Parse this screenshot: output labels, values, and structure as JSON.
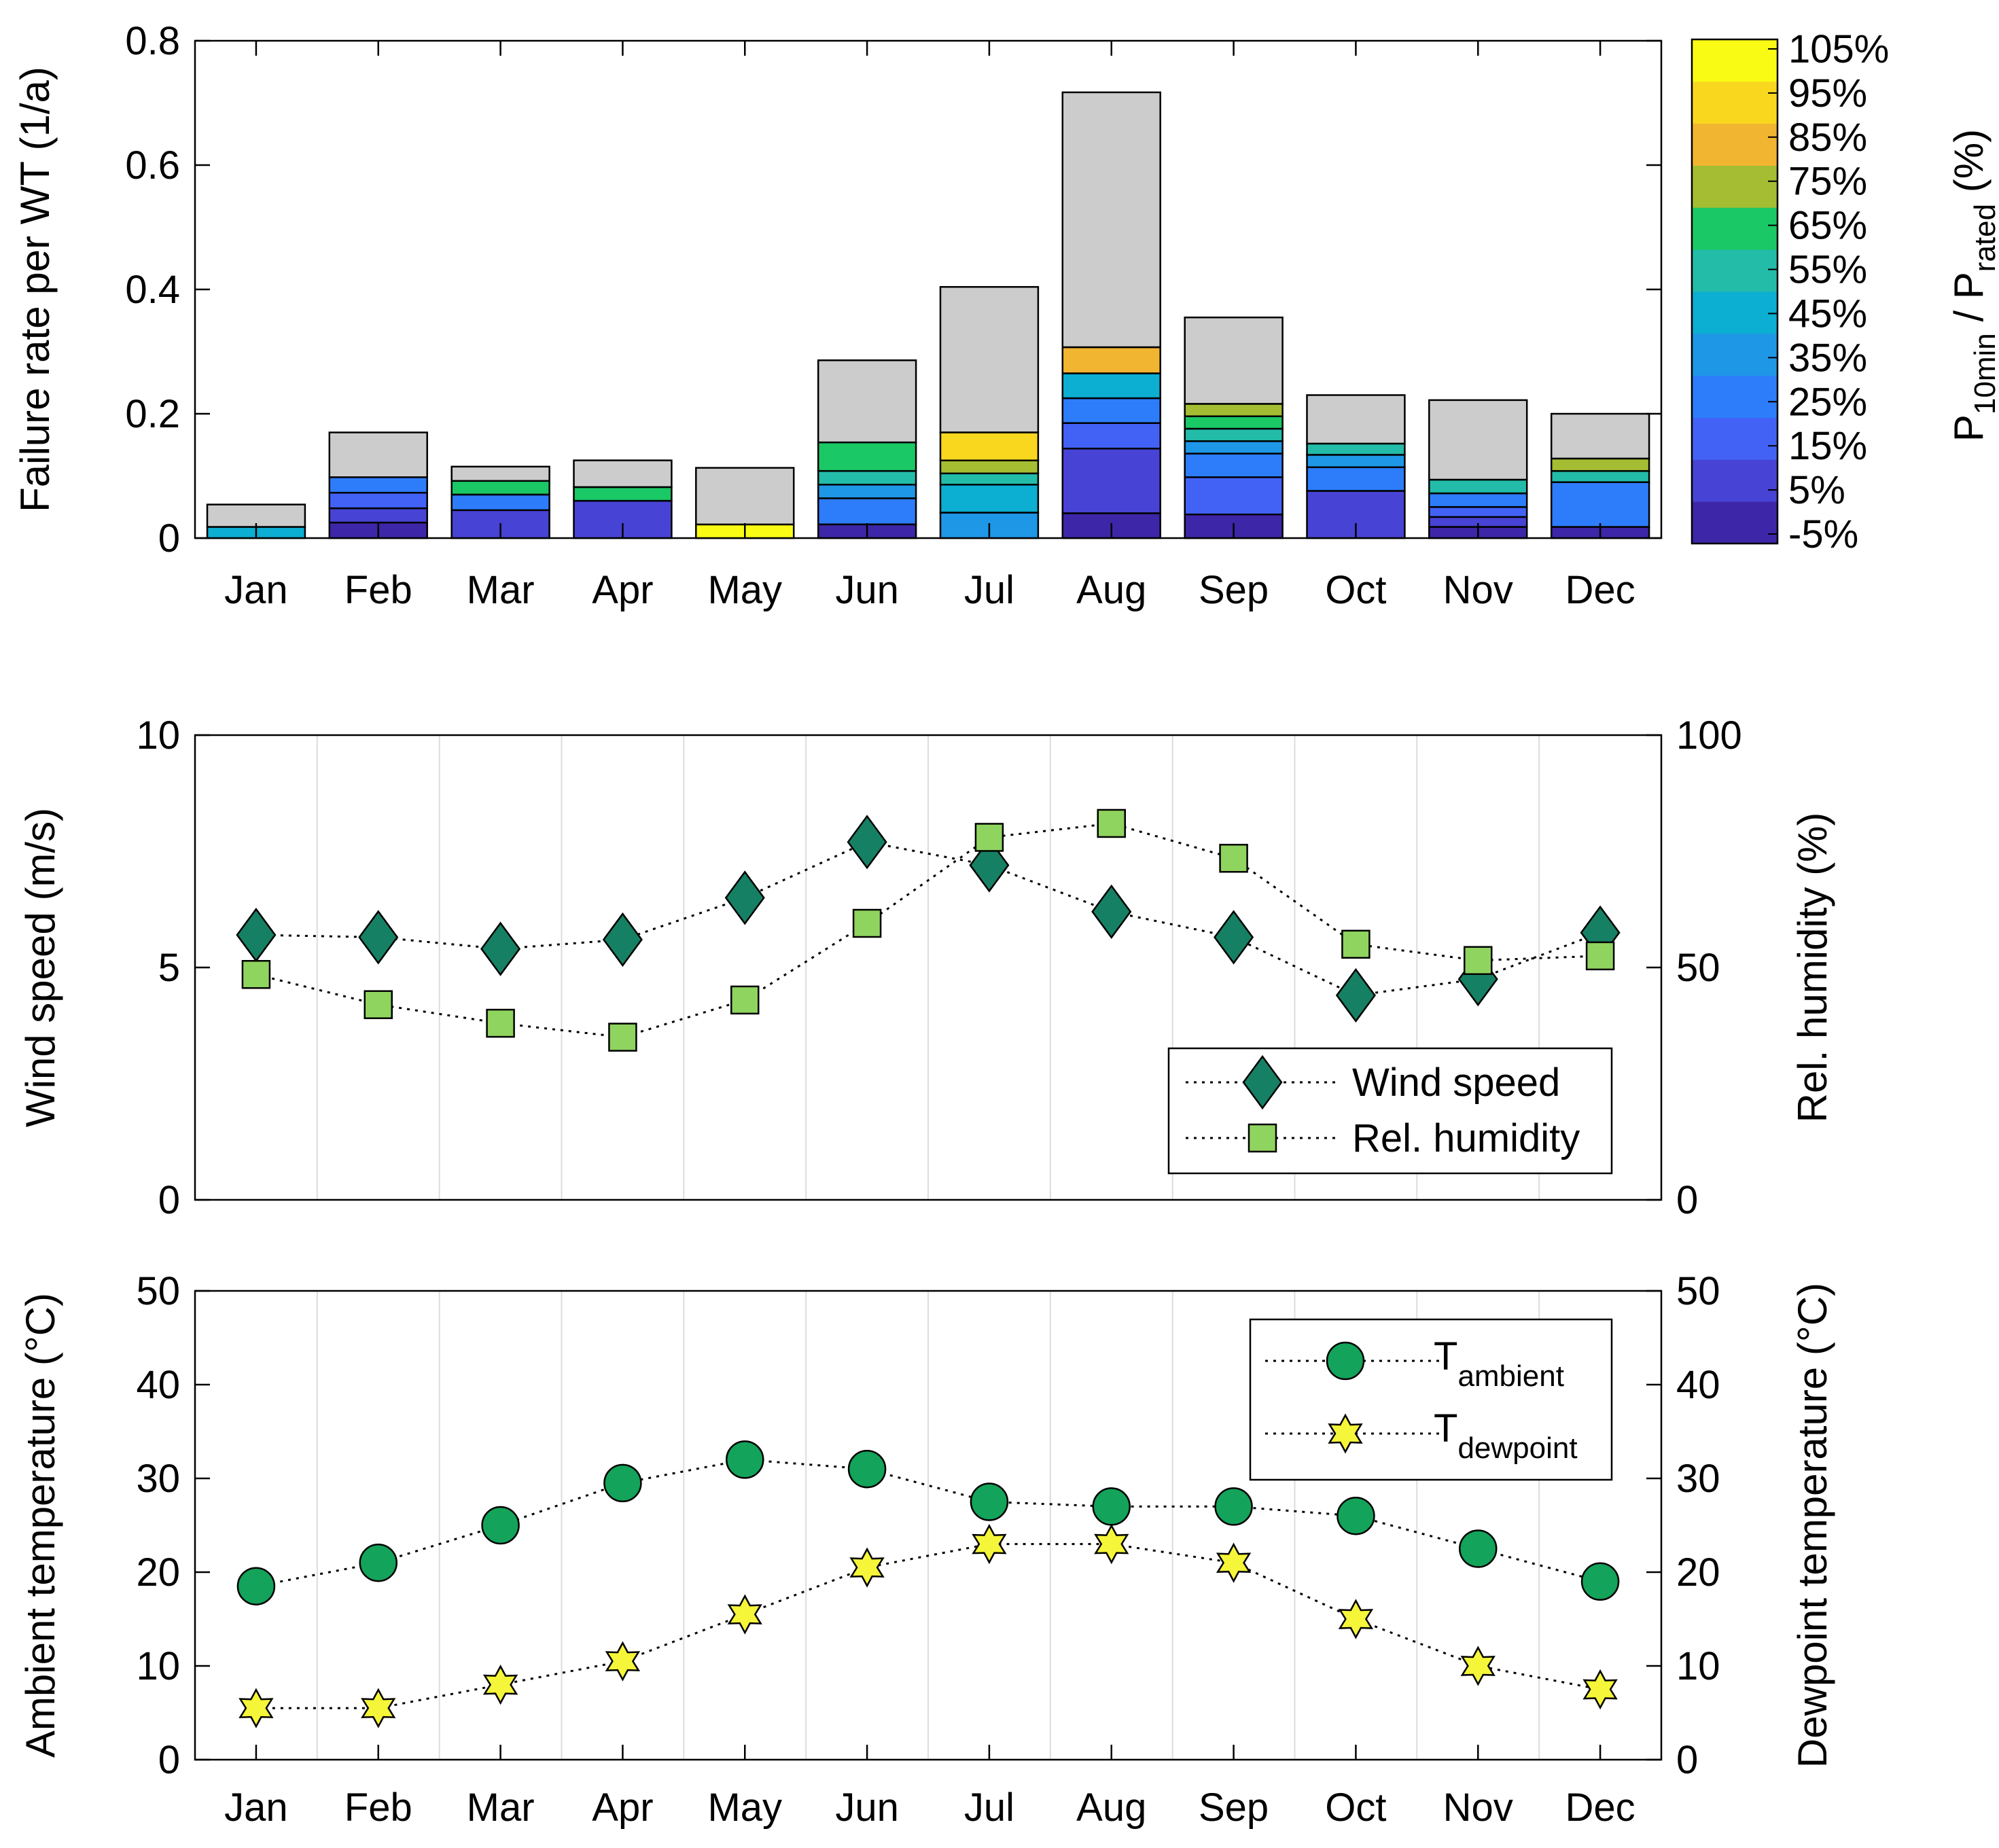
{
  "months": [
    "Jan",
    "Feb",
    "Mar",
    "Apr",
    "May",
    "Jun",
    "Jul",
    "Aug",
    "Sep",
    "Oct",
    "Nov",
    "Dec"
  ],
  "colors": {
    "unknown_power": "#cccccc",
    "colormap": [
      "#3e26a8",
      "#4743d4",
      "#4262f6",
      "#2d7dfb",
      "#1e97e7",
      "#0caed1",
      "#23bca9",
      "#1ac865",
      "#a4bd32",
      "#f2b531",
      "#fad71f",
      "#f9fb15"
    ]
  },
  "chart_data": [
    {
      "id": "failure",
      "type": "bar",
      "stacked": true,
      "ylabel": "Failure rate per WT (1/a)",
      "ylim": [
        0,
        0.8
      ],
      "yticks": [
        "0",
        "0.2",
        "0.4",
        "0.6",
        "0.8"
      ],
      "categories": [
        "Jan",
        "Feb",
        "Mar",
        "Apr",
        "May",
        "Jun",
        "Jul",
        "Aug",
        "Sep",
        "Oct",
        "Nov",
        "Dec"
      ],
      "segments_note_units": "1/a",
      "stacks": [
        [
          {
            "value": 0.018,
            "color": "#0caed1"
          },
          {
            "value": 0.036,
            "color": "#cccccc"
          }
        ],
        [
          {
            "value": 0.025,
            "color": "#3e26a8"
          },
          {
            "value": 0.023,
            "color": "#4743d4"
          },
          {
            "value": 0.025,
            "color": "#4262f6"
          },
          {
            "value": 0.025,
            "color": "#2d7dfb"
          },
          {
            "value": 0.072,
            "color": "#cccccc"
          }
        ],
        [
          {
            "value": 0.045,
            "color": "#4743d4"
          },
          {
            "value": 0.025,
            "color": "#2d7dfb"
          },
          {
            "value": 0.022,
            "color": "#1ac865"
          },
          {
            "value": 0.023,
            "color": "#cccccc"
          }
        ],
        [
          {
            "value": 0.06,
            "color": "#4743d4"
          },
          {
            "value": 0.022,
            "color": "#1ac865"
          },
          {
            "value": 0.043,
            "color": "#cccccc"
          }
        ],
        [
          {
            "value": 0.022,
            "color": "#f9fb15"
          },
          {
            "value": 0.091,
            "color": "#cccccc"
          }
        ],
        [
          {
            "value": 0.022,
            "color": "#3e26a8"
          },
          {
            "value": 0.042,
            "color": "#2d7dfb"
          },
          {
            "value": 0.022,
            "color": "#1e97e7"
          },
          {
            "value": 0.022,
            "color": "#23bca9"
          },
          {
            "value": 0.046,
            "color": "#1ac865"
          },
          {
            "value": 0.132,
            "color": "#cccccc"
          }
        ],
        [
          {
            "value": 0.041,
            "color": "#1e97e7"
          },
          {
            "value": 0.045,
            "color": "#0caed1"
          },
          {
            "value": 0.018,
            "color": "#23bca9"
          },
          {
            "value": 0.021,
            "color": "#a4bd32"
          },
          {
            "value": 0.045,
            "color": "#fad71f"
          },
          {
            "value": 0.234,
            "color": "#cccccc"
          }
        ],
        [
          {
            "value": 0.04,
            "color": "#3e26a8"
          },
          {
            "value": 0.104,
            "color": "#4743d4"
          },
          {
            "value": 0.041,
            "color": "#4262f6"
          },
          {
            "value": 0.04,
            "color": "#2d7dfb"
          },
          {
            "value": 0.04,
            "color": "#0caed1"
          },
          {
            "value": 0.042,
            "color": "#f2b531"
          },
          {
            "value": 0.41,
            "color": "#cccccc"
          }
        ],
        [
          {
            "value": 0.038,
            "color": "#3e26a8"
          },
          {
            "value": 0.06,
            "color": "#4262f6"
          },
          {
            "value": 0.038,
            "color": "#2d7dfb"
          },
          {
            "value": 0.02,
            "color": "#1e97e7"
          },
          {
            "value": 0.02,
            "color": "#23bca9"
          },
          {
            "value": 0.02,
            "color": "#1ac865"
          },
          {
            "value": 0.02,
            "color": "#a4bd32"
          },
          {
            "value": 0.139,
            "color": "#cccccc"
          }
        ],
        [
          {
            "value": 0.076,
            "color": "#4743d4"
          },
          {
            "value": 0.038,
            "color": "#2d7dfb"
          },
          {
            "value": 0.02,
            "color": "#1e97e7"
          },
          {
            "value": 0.018,
            "color": "#23bca9"
          },
          {
            "value": 0.078,
            "color": "#cccccc"
          }
        ],
        [
          {
            "value": 0.018,
            "color": "#3e26a8"
          },
          {
            "value": 0.016,
            "color": "#4743d4"
          },
          {
            "value": 0.016,
            "color": "#4262f6"
          },
          {
            "value": 0.022,
            "color": "#2d7dfb"
          },
          {
            "value": 0.022,
            "color": "#23bca9"
          },
          {
            "value": 0.128,
            "color": "#cccccc"
          }
        ],
        [
          {
            "value": 0.018,
            "color": "#3e26a8"
          },
          {
            "value": 0.072,
            "color": "#2d7dfb"
          },
          {
            "value": 0.018,
            "color": "#23bca9"
          },
          {
            "value": 0.02,
            "color": "#a4bd32"
          },
          {
            "value": 0.072,
            "color": "#cccccc"
          }
        ]
      ],
      "colorbar": {
        "label_main": "P",
        "label_sub1": "10min",
        "label_mid": " / P",
        "label_sub2": "rated",
        "label_end": " (%)",
        "ticks": [
          "105%",
          "95%",
          "85%",
          "75%",
          "65%",
          "55%",
          "45%",
          "35%",
          "25%",
          "15%",
          "5%",
          "-5%"
        ]
      }
    },
    {
      "id": "wind",
      "type": "line",
      "ylabel": "Wind speed (m/s)",
      "ylabel_right": "Rel. humidity (%)",
      "ylim": [
        0,
        10
      ],
      "ylim_right": [
        0,
        100
      ],
      "yticks": [
        "0",
        "5",
        "10"
      ],
      "yticks_right": [
        "0",
        "50",
        "100"
      ],
      "categories": [
        "Jan",
        "Feb",
        "Mar",
        "Apr",
        "May",
        "Jun",
        "Jul",
        "Aug",
        "Sep",
        "Oct",
        "Nov",
        "Dec"
      ],
      "series": [
        {
          "name": "Wind speed",
          "axis": "left",
          "marker": "diamond",
          "color": "#168064",
          "values": [
            5.7,
            5.65,
            5.4,
            5.6,
            6.5,
            7.7,
            7.2,
            6.2,
            5.65,
            4.4,
            4.75,
            5.75
          ]
        },
        {
          "name": "Rel. humidity",
          "axis": "right",
          "marker": "square",
          "color": "#8fd45f",
          "values": [
            48.5,
            42,
            38,
            35,
            43,
            59.5,
            78,
            81,
            73.5,
            55,
            51.5,
            52.5
          ]
        }
      ]
    },
    {
      "id": "temp",
      "type": "line",
      "ylabel": "Ambient temperature (°C)",
      "ylabel_right": "Dewpoint temperature (°C)",
      "ylim": [
        0,
        50
      ],
      "ylim_right": [
        0,
        50
      ],
      "yticks": [
        "0",
        "10",
        "20",
        "30",
        "40",
        "50"
      ],
      "yticks_right": [
        "0",
        "10",
        "20",
        "30",
        "40",
        "50"
      ],
      "categories": [
        "Jan",
        "Feb",
        "Mar",
        "Apr",
        "May",
        "Jun",
        "Jul",
        "Aug",
        "Sep",
        "Oct",
        "Nov",
        "Dec"
      ],
      "series": [
        {
          "name": "T",
          "name_sub": "ambient",
          "axis": "left",
          "marker": "circle",
          "color": "#13a35a",
          "values": [
            18.5,
            21,
            25,
            29.5,
            32,
            31,
            27.5,
            27,
            27,
            26,
            22.5,
            19
          ]
        },
        {
          "name": "T",
          "name_sub": "dewpoint",
          "axis": "right",
          "marker": "star",
          "color": "#f5f53a",
          "values": [
            5.5,
            5.5,
            8,
            10.5,
            15.5,
            20.5,
            23,
            23,
            21,
            15,
            10,
            7.5
          ]
        }
      ]
    }
  ]
}
